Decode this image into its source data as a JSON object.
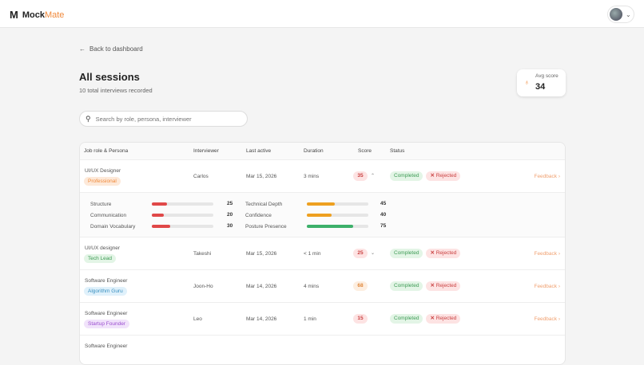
{
  "app": {
    "brand_prefix": "Mock",
    "brand_suffix": "Mate"
  },
  "nav": {
    "back": "Back to dashboard"
  },
  "page": {
    "title": "All sessions",
    "subtitle": "10 total interviews recorded"
  },
  "avg": {
    "label": "Avg score",
    "value": "34"
  },
  "search": {
    "placeholder": "Search by role, persona, interviewer"
  },
  "table": {
    "headers": [
      "Job role & Persona",
      "Interviewer",
      "Last active",
      "Duration",
      "Score",
      "Status"
    ],
    "rows": [
      {
        "role": "UI/UX Designer",
        "persona": "Professional",
        "persona_color": "#f08a3c",
        "persona_bg": "#fde9d9",
        "interviewer": "Carlos",
        "last_active": "Mar 15, 2026",
        "duration": "3 mins",
        "score": "35",
        "score_color": "#c94040",
        "score_bg": "#fde3e3",
        "status": "Completed",
        "result": "Rejected",
        "feedback": "Feedback",
        "expanded": true
      },
      {
        "role": "UI/UX designer",
        "persona": "Tech Lead",
        "persona_color": "#3e9b55",
        "persona_bg": "#e3f5e6",
        "interviewer": "Takeshi",
        "last_active": "Mar 15, 2026",
        "duration": "< 1 min",
        "score": "25",
        "score_color": "#c94040",
        "score_bg": "#fde3e3",
        "status": "Completed",
        "result": "Rejected",
        "feedback": "Feedback"
      },
      {
        "role": "Software Engineer",
        "persona": "Algorithm Guru",
        "persona_color": "#3a90c0",
        "persona_bg": "#e0f1fb",
        "interviewer": "Joon-Ho",
        "last_active": "Mar 14, 2026",
        "duration": "4 mins",
        "score": "68",
        "score_color": "#e0883c",
        "score_bg": "#fdeee0",
        "status": "Completed",
        "result": "Rejected",
        "feedback": "Feedback"
      },
      {
        "role": "Software Engineer",
        "persona": "Startup Founder",
        "persona_color": "#9b4fd0",
        "persona_bg": "#f1e3fb",
        "interviewer": "Leo",
        "last_active": "Mar 14, 2026",
        "duration": "1 min",
        "score": "15",
        "score_color": "#c94040",
        "score_bg": "#fde3e3",
        "status": "Completed",
        "result": "Rejected",
        "feedback": "Feedback"
      },
      {
        "role": "Software Engineer"
      }
    ]
  },
  "metrics": [
    {
      "label": "Structure",
      "value": 25,
      "color": "#e04848"
    },
    {
      "label": "Communication",
      "value": 20,
      "color": "#e04848"
    },
    {
      "label": "Domain Vocabulary",
      "value": 30,
      "color": "#e04848"
    },
    {
      "label": "Technical Depth",
      "value": 45,
      "color": "#eea020"
    },
    {
      "label": "Confidence",
      "value": 40,
      "color": "#eea020"
    },
    {
      "label": "Posture Presence",
      "value": 75,
      "color": "#3db06a"
    }
  ]
}
